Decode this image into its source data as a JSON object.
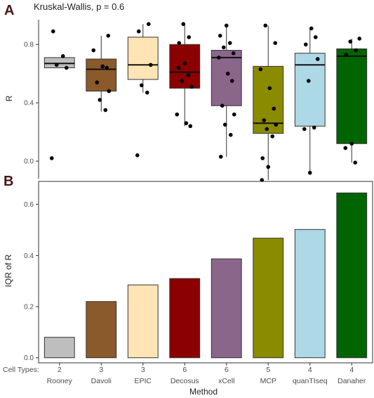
{
  "chart_data": [
    {
      "panel": "A",
      "type": "boxplot",
      "title": "Kruskal-Wallis, p = 0.6",
      "ylabel": "R",
      "ylim": [
        -0.12,
        0.97
      ],
      "yticks": [
        "0.0",
        "0.4",
        "0.8"
      ],
      "ytick_values": [
        0.0,
        0.4,
        0.8
      ],
      "grid": false,
      "categories": [
        "Rooney",
        "Davoli",
        "EPIC",
        "Decosus",
        "xCell",
        "MCP",
        "quanTIseq",
        "Danaher"
      ],
      "colors": [
        "#bebebe",
        "#8b5a2b",
        "#ffe4b5",
        "#8b0000",
        "#8b668b",
        "#8b8b00",
        "#add8e6",
        "#006400"
      ],
      "boxes": [
        {
          "min": 0.64,
          "q1": 0.64,
          "median": 0.67,
          "q3": 0.71,
          "max": 0.71,
          "points": [
            0.89,
            0.72,
            0.66,
            0.64,
            0.02
          ]
        },
        {
          "min": 0.34,
          "q1": 0.48,
          "median": 0.63,
          "q3": 0.7,
          "max": 0.86,
          "points": [
            0.86,
            0.76,
            0.65,
            0.64,
            0.54,
            0.48,
            0.42,
            0.35
          ]
        },
        {
          "min": 0.47,
          "q1": 0.56,
          "median": 0.66,
          "q3": 0.85,
          "max": 0.94,
          "points": [
            0.94,
            0.89,
            0.66,
            0.52,
            0.47,
            0.04
          ]
        },
        {
          "min": 0.24,
          "q1": 0.5,
          "median": 0.61,
          "q3": 0.8,
          "max": 0.94,
          "points": [
            0.94,
            0.85,
            0.81,
            0.67,
            0.64,
            0.59,
            0.55,
            0.51,
            0.32,
            0.26,
            0.24
          ]
        },
        {
          "min": 0.03,
          "q1": 0.38,
          "median": 0.71,
          "q3": 0.76,
          "max": 0.93,
          "points": [
            0.93,
            0.86,
            0.81,
            0.78,
            0.74,
            0.71,
            0.6,
            0.55,
            0.38,
            0.32,
            0.25,
            0.18,
            0.03
          ]
        },
        {
          "min": -0.13,
          "q1": 0.19,
          "median": 0.26,
          "q3": 0.65,
          "max": 0.93,
          "points": [
            0.93,
            0.81,
            0.63,
            0.5,
            0.36,
            0.28,
            0.25,
            0.22,
            0.17,
            0.02,
            -0.04,
            -0.13
          ]
        },
        {
          "min": -0.08,
          "q1": 0.24,
          "median": 0.66,
          "q3": 0.74,
          "max": 0.91,
          "points": [
            0.91,
            0.85,
            0.8,
            0.7,
            0.55,
            0.23,
            0.22,
            -0.08
          ]
        },
        {
          "min": -0.01,
          "q1": 0.12,
          "median": 0.72,
          "q3": 0.77,
          "max": 0.84,
          "points": [
            0.84,
            0.82,
            0.76,
            0.73,
            0.12,
            0.09,
            -0.01
          ]
        }
      ]
    },
    {
      "panel": "B",
      "type": "bar",
      "ylabel": "IQR of R",
      "xlabel": "Method",
      "ylim": [
        -0.02,
        0.69
      ],
      "yticks": [
        "0.0",
        "0.2",
        "0.4",
        "0.6"
      ],
      "ytick_values": [
        0.0,
        0.2,
        0.4,
        0.6
      ],
      "grid": false,
      "categories": [
        "Rooney",
        "Davoli",
        "EPIC",
        "Decosus",
        "xCell",
        "MCP",
        "quanTIseq",
        "Danaher"
      ],
      "values": [
        0.08,
        0.22,
        0.285,
        0.31,
        0.387,
        0.468,
        0.502,
        0.645
      ],
      "colors": [
        "#bebebe",
        "#8b5a2b",
        "#ffe4b5",
        "#8b0000",
        "#8b668b",
        "#8b8b00",
        "#add8e6",
        "#006400"
      ],
      "cell_types_label": "Cell Types:",
      "cell_types": [
        "2",
        "3",
        "3",
        "6",
        "6",
        "5",
        "4",
        "4"
      ]
    }
  ]
}
